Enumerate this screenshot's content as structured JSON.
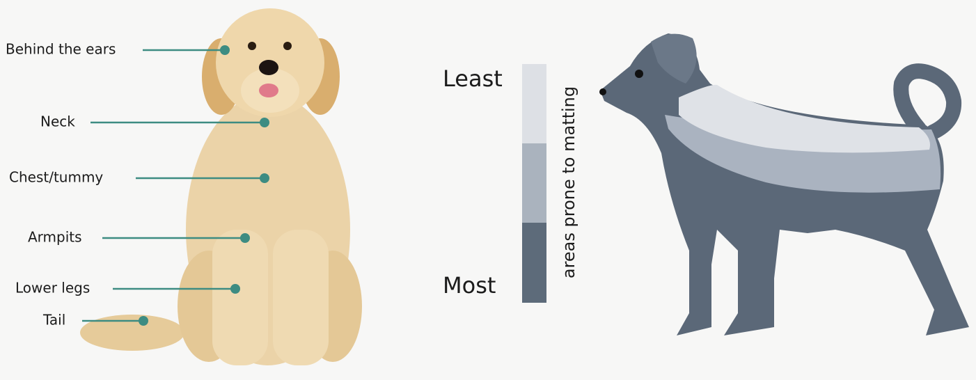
{
  "labels": [
    "Behind the ears",
    "Neck",
    "Chest/tummy",
    "Armpits",
    "Lower legs",
    "Tail"
  ],
  "scale": {
    "least": "Least",
    "most": "Most",
    "axis_label": "areas prone to matting"
  }
}
